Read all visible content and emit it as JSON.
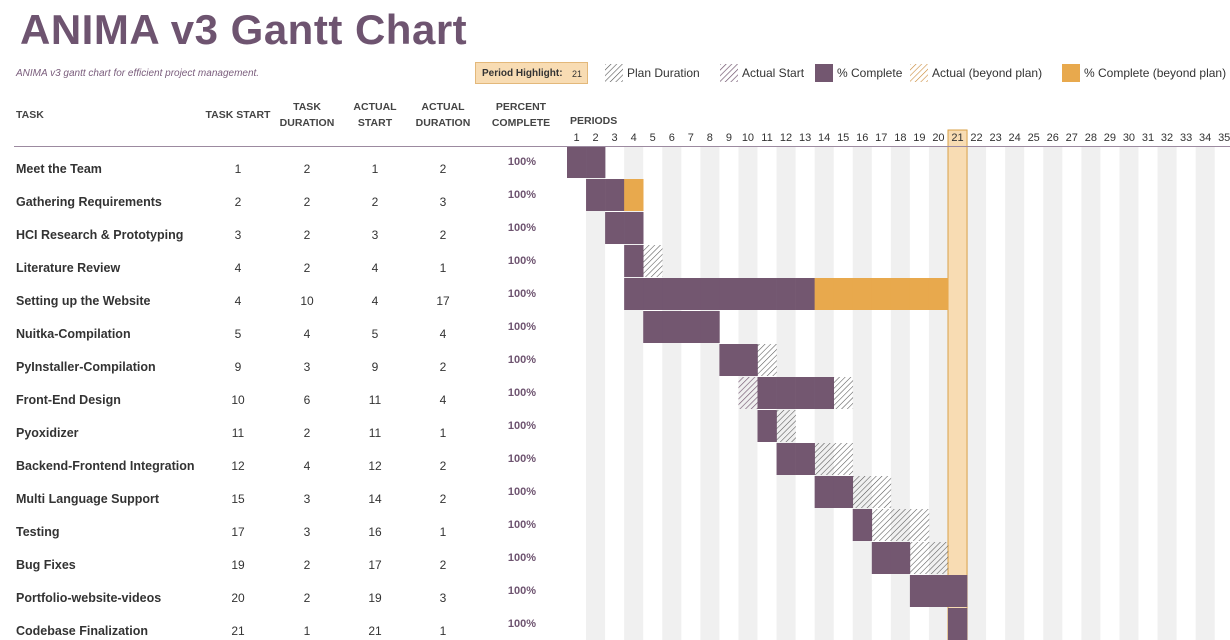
{
  "header": {
    "title": "ANIMA v3 Gantt Chart",
    "subtitle": "ANIMA v3 gantt chart for efficient project management."
  },
  "period_highlight": {
    "label": "Period Highlight:",
    "value": 21
  },
  "legend": [
    {
      "label": "Plan Duration",
      "style": "plan"
    },
    {
      "label": "Actual Start",
      "style": "actual-start"
    },
    {
      "label": "% Complete",
      "style": "complete"
    },
    {
      "label": "Actual (beyond plan)",
      "style": "actual-beyond"
    },
    {
      "label": "% Complete (beyond plan)",
      "style": "complete-beyond"
    }
  ],
  "columns": {
    "task": "TASK",
    "task_start": "TASK START",
    "task_duration_1": "TASK",
    "task_duration_2": "DURATION",
    "actual_start_1": "ACTUAL",
    "actual_start_2": "START",
    "actual_duration_1": "ACTUAL",
    "actual_duration_2": "DURATION",
    "percent_1": "PERCENT",
    "percent_2": "COMPLETE",
    "periods": "PERIODS"
  },
  "colors": {
    "complete": "#735770",
    "beyond": "#e8a94d",
    "highlight": "#f8dcb3",
    "highlight_border": "#d9a047",
    "stripe": "#f0f0f0"
  },
  "chart_data": {
    "type": "gantt",
    "periods": [
      1,
      2,
      3,
      4,
      5,
      6,
      7,
      8,
      9,
      10,
      11,
      12,
      13,
      14,
      15,
      16,
      17,
      18,
      19,
      20,
      21,
      22,
      23,
      24,
      25,
      26,
      27,
      28,
      29,
      30,
      31,
      32,
      33,
      34,
      35
    ],
    "highlight_period": 21,
    "tasks": [
      {
        "name": "Meet the Team",
        "plan_start": 1,
        "plan_duration": 2,
        "actual_start": 1,
        "actual_duration": 2,
        "percent": "100%"
      },
      {
        "name": "Gathering Requirements",
        "plan_start": 2,
        "plan_duration": 2,
        "actual_start": 2,
        "actual_duration": 3,
        "percent": "100%"
      },
      {
        "name": "HCI Research & Prototyping",
        "plan_start": 3,
        "plan_duration": 2,
        "actual_start": 3,
        "actual_duration": 2,
        "percent": "100%"
      },
      {
        "name": "Literature Review",
        "plan_start": 4,
        "plan_duration": 2,
        "actual_start": 4,
        "actual_duration": 1,
        "percent": "100%"
      },
      {
        "name": "Setting up the Website",
        "plan_start": 4,
        "plan_duration": 10,
        "actual_start": 4,
        "actual_duration": 17,
        "percent": "100%"
      },
      {
        "name": "Nuitka-Compilation",
        "plan_start": 5,
        "plan_duration": 4,
        "actual_start": 5,
        "actual_duration": 4,
        "percent": "100%"
      },
      {
        "name": "PyInstaller-Compilation",
        "plan_start": 9,
        "plan_duration": 3,
        "actual_start": 9,
        "actual_duration": 2,
        "percent": "100%"
      },
      {
        "name": "Front-End Design",
        "plan_start": 10,
        "plan_duration": 6,
        "actual_start": 11,
        "actual_duration": 4,
        "percent": "100%"
      },
      {
        "name": "Pyoxidizer",
        "plan_start": 11,
        "plan_duration": 2,
        "actual_start": 11,
        "actual_duration": 1,
        "percent": "100%"
      },
      {
        "name": "Backend-Frontend Integration",
        "plan_start": 12,
        "plan_duration": 4,
        "actual_start": 12,
        "actual_duration": 2,
        "percent": "100%"
      },
      {
        "name": "Multi Language Support",
        "plan_start": 15,
        "plan_duration": 3,
        "actual_start": 14,
        "actual_duration": 2,
        "percent": "100%"
      },
      {
        "name": "Testing",
        "plan_start": 17,
        "plan_duration": 3,
        "actual_start": 16,
        "actual_duration": 1,
        "percent": "100%"
      },
      {
        "name": "Bug Fixes",
        "plan_start": 19,
        "plan_duration": 2,
        "actual_start": 17,
        "actual_duration": 2,
        "percent": "100%"
      },
      {
        "name": "Portfolio-website-videos",
        "plan_start": 20,
        "plan_duration": 2,
        "actual_start": 19,
        "actual_duration": 3,
        "percent": "100%"
      },
      {
        "name": "Codebase Finalization",
        "plan_start": 21,
        "plan_duration": 1,
        "actual_start": 21,
        "actual_duration": 1,
        "percent": "100%"
      }
    ]
  }
}
